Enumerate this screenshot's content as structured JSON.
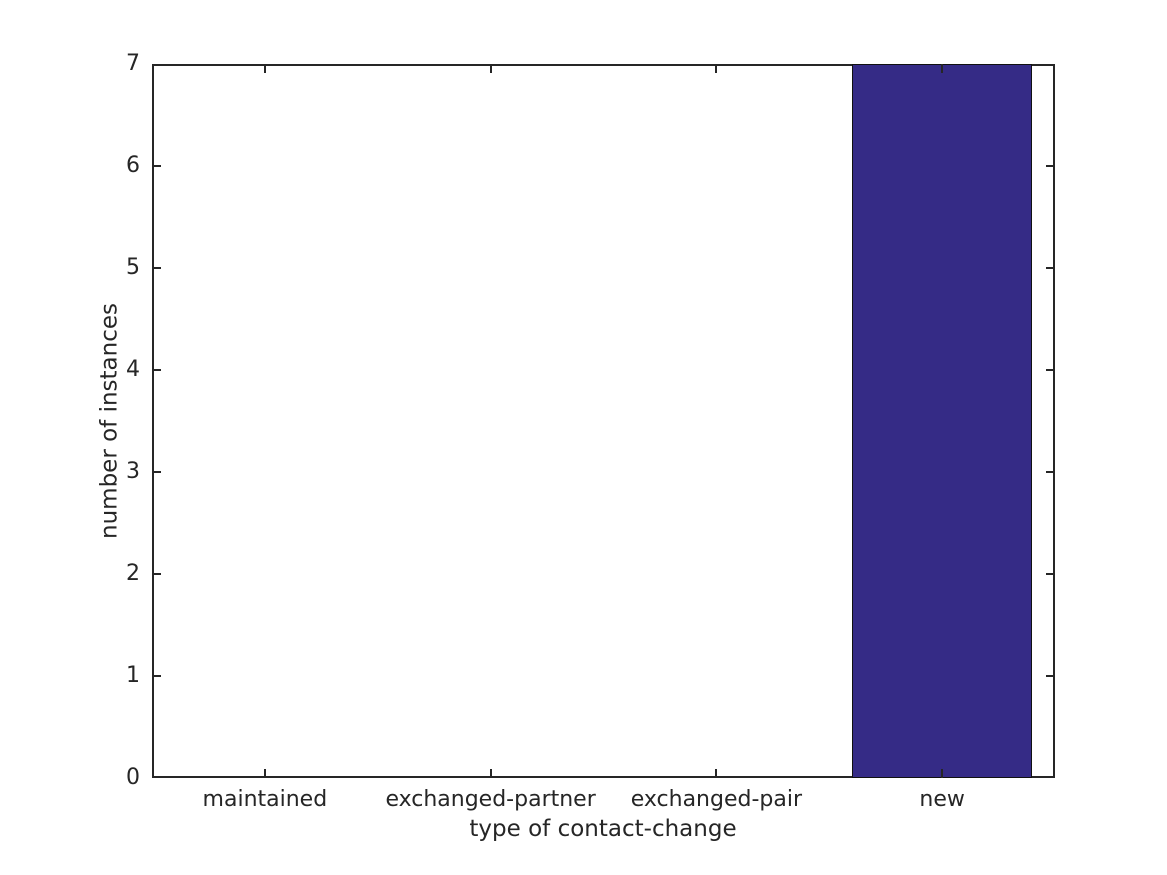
{
  "chart_data": {
    "type": "bar",
    "title": "",
    "categories": [
      "maintained",
      "exchanged-partner",
      "exchanged-pair",
      "new"
    ],
    "values": [
      0,
      0,
      0,
      7
    ],
    "xlabel": "type of contact-change",
    "ylabel": "number of instances",
    "ylim": [
      0,
      7
    ],
    "yticks": [
      0,
      1,
      2,
      3,
      4,
      5,
      6,
      7
    ],
    "bar_color": "#352b86",
    "bar_edge_color": "#111111",
    "axis_color": "#262626",
    "text_color": "#262626",
    "background_color": "#ffffff",
    "bar_width_fraction": 0.8,
    "grid": false,
    "tick_direction": "in",
    "legend": null
  }
}
